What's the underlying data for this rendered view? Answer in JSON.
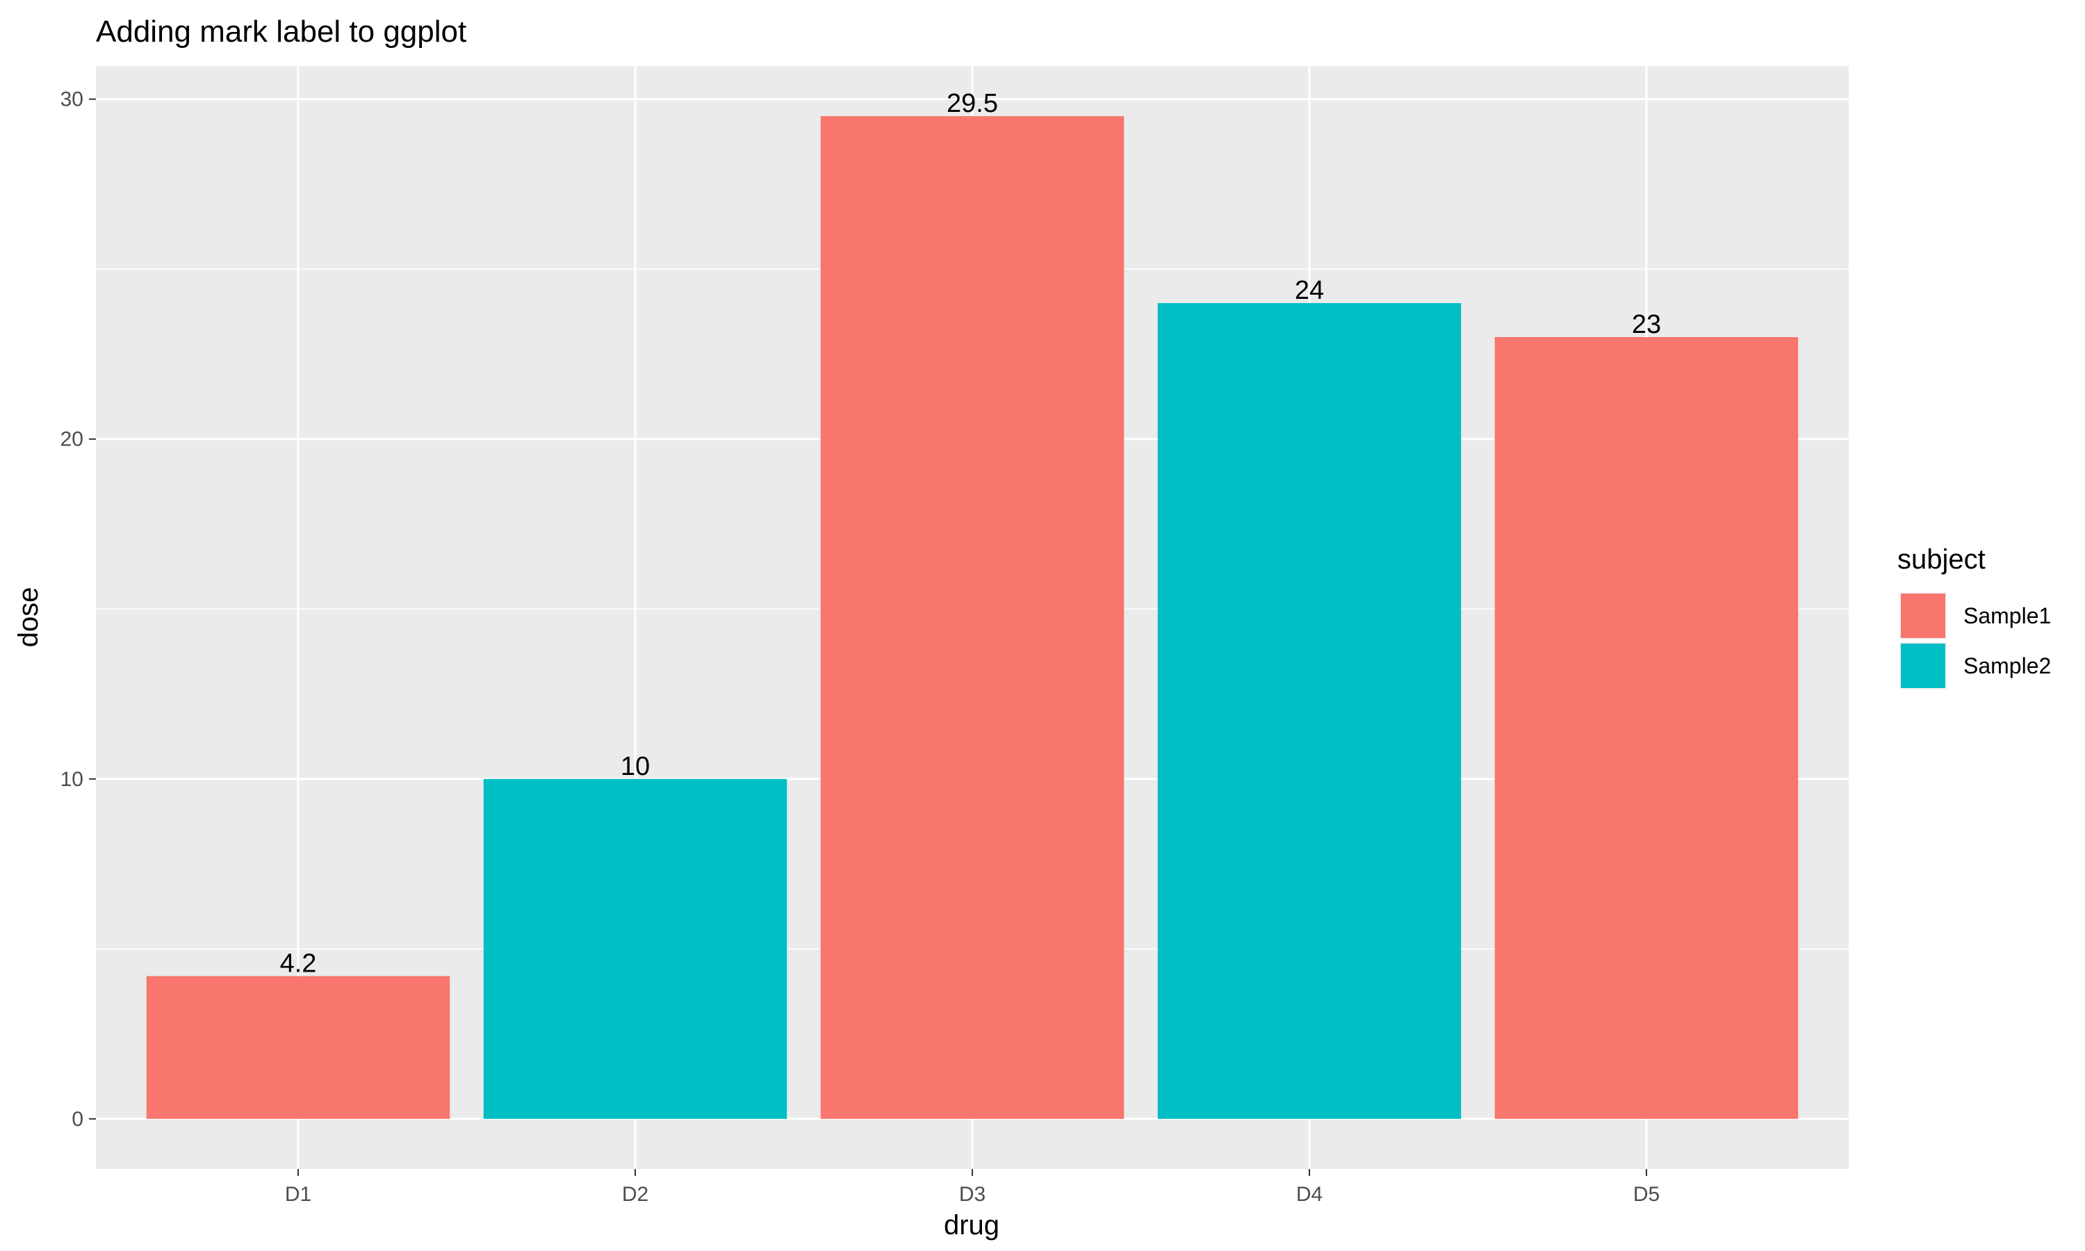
{
  "chart_data": {
    "type": "bar",
    "title": "Adding mark label to ggplot",
    "xlabel": "drug",
    "ylabel": "dose",
    "categories": [
      "D1",
      "D2",
      "D3",
      "D4",
      "D5"
    ],
    "values": [
      4.2,
      10,
      29.5,
      24,
      23
    ],
    "labels": [
      "4.2",
      "10",
      "29.5",
      "24",
      "23"
    ],
    "groups": [
      "Sample1",
      "Sample2",
      "Sample1",
      "Sample2",
      "Sample1"
    ],
    "ylim": [
      -1.475,
      30.975
    ],
    "yticks": [
      0,
      10,
      20,
      30
    ],
    "ytick_labels": [
      "0",
      "10",
      "20",
      "30"
    ],
    "grid": true,
    "legend": {
      "title": "subject",
      "position": "right",
      "entries": [
        {
          "name": "Sample1",
          "color": "#F8766D"
        },
        {
          "name": "Sample2",
          "color": "#00BFC4"
        }
      ]
    }
  },
  "colors": {
    "panel_background": "#EBEBEB",
    "grid_major": "#FFFFFF",
    "tick": "#333333"
  }
}
